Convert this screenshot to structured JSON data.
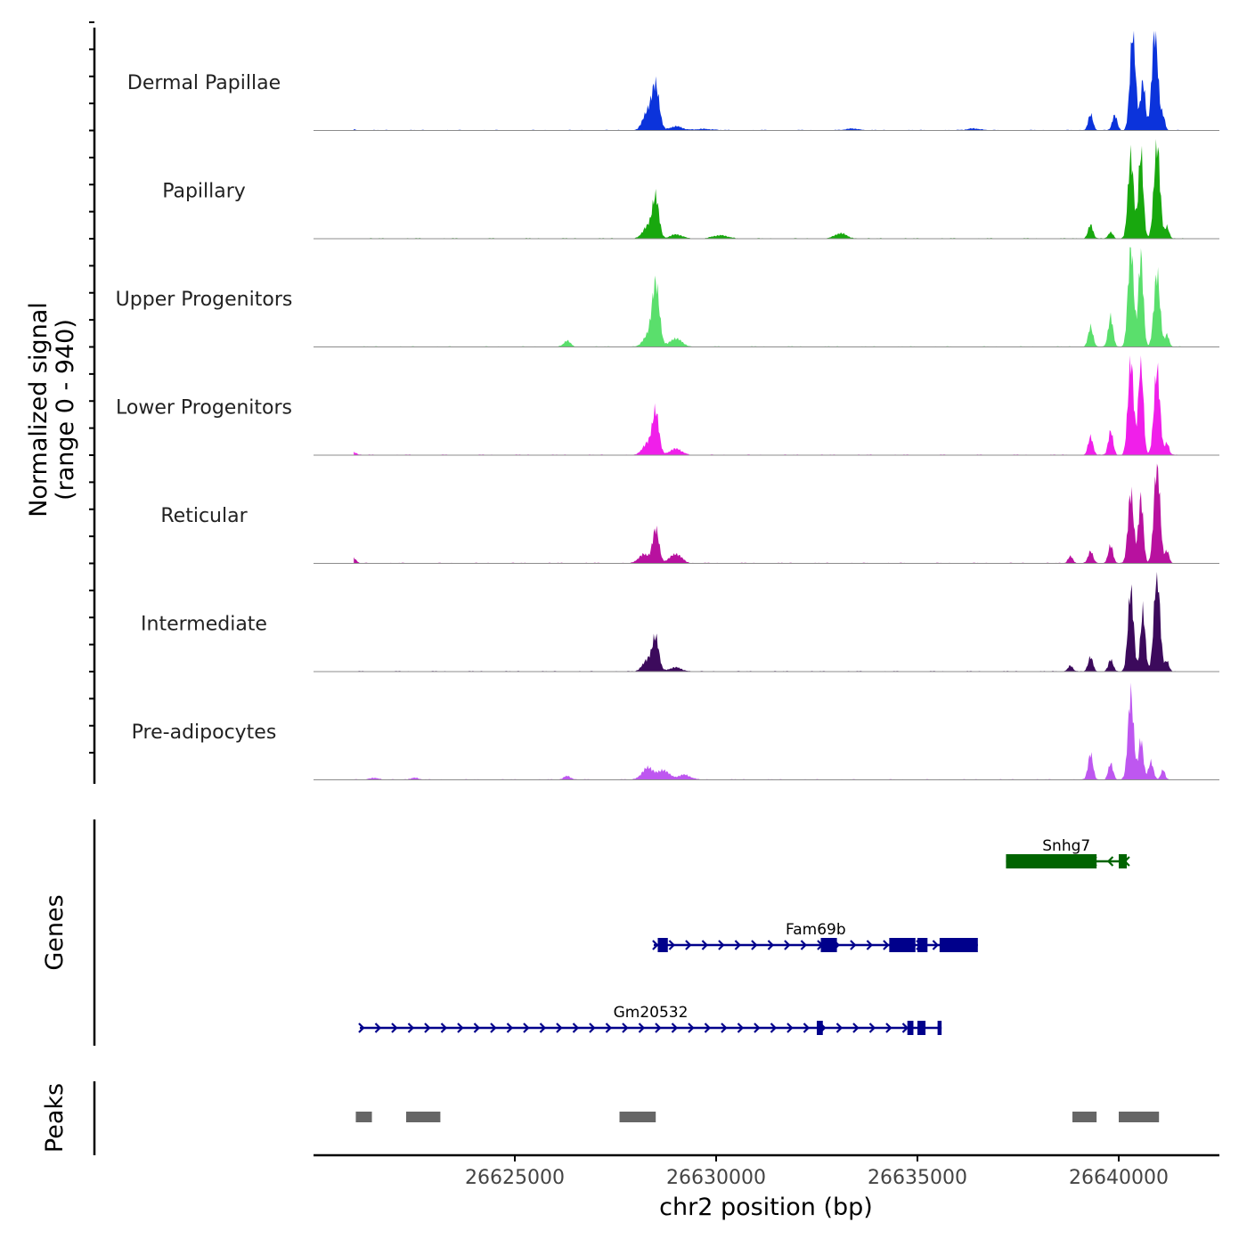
{
  "chart_data": {
    "type": "area",
    "title": "",
    "xlabel": "chr2 position (bp)",
    "ylabel_line1": "Normalized signal",
    "ylabel_line2": "(range 0 - 940)",
    "xlim": [
      26620000,
      26642500
    ],
    "ylim": [
      0,
      940
    ],
    "x_ticks": [
      26625000,
      26630000,
      26635000,
      26640000
    ],
    "x_tick_labels": [
      "26625000",
      "26630000",
      "26635000",
      "26640000"
    ],
    "tracks": [
      {
        "name": "Dermal Papillae",
        "color": "#0B33DB",
        "peaks": [
          [
            26621000,
            12,
            60
          ],
          [
            26628300,
            180,
            120
          ],
          [
            26628500,
            420,
            90
          ],
          [
            26629000,
            40,
            150
          ],
          [
            26629700,
            15,
            200
          ],
          [
            26633400,
            18,
            150
          ],
          [
            26636400,
            20,
            150
          ],
          [
            26639300,
            160,
            60
          ],
          [
            26639900,
            150,
            60
          ],
          [
            26640350,
            980,
            70
          ],
          [
            26640600,
            480,
            60
          ],
          [
            26640900,
            1000,
            75
          ],
          [
            26641100,
            140,
            50
          ]
        ]
      },
      {
        "name": "Papillary",
        "color": "#18A80E",
        "peaks": [
          [
            26628300,
            120,
            120
          ],
          [
            26628500,
            400,
            80
          ],
          [
            26629000,
            40,
            150
          ],
          [
            26630100,
            30,
            200
          ],
          [
            26633100,
            50,
            150
          ],
          [
            26639300,
            140,
            60
          ],
          [
            26639800,
            60,
            60
          ],
          [
            26640300,
            820,
            70
          ],
          [
            26640550,
            860,
            60
          ],
          [
            26640950,
            950,
            75
          ],
          [
            26641200,
            120,
            50
          ]
        ]
      },
      {
        "name": "Upper Progenitors",
        "color": "#5ADF6C",
        "peaks": [
          [
            26626300,
            60,
            80
          ],
          [
            26628300,
            100,
            120
          ],
          [
            26628500,
            620,
            90
          ],
          [
            26629000,
            80,
            150
          ],
          [
            26639300,
            200,
            60
          ],
          [
            26639800,
            300,
            60
          ],
          [
            26640300,
            1000,
            70
          ],
          [
            26640550,
            900,
            60
          ],
          [
            26640950,
            730,
            75
          ],
          [
            26641200,
            120,
            50
          ]
        ]
      },
      {
        "name": "Lower Progenitors",
        "color": "#F01FEA",
        "peaks": [
          [
            26621000,
            30,
            60
          ],
          [
            26628300,
            120,
            120
          ],
          [
            26628500,
            420,
            80
          ],
          [
            26629000,
            60,
            150
          ],
          [
            26639300,
            180,
            60
          ],
          [
            26639800,
            240,
            60
          ],
          [
            26640300,
            950,
            70
          ],
          [
            26640550,
            960,
            60
          ],
          [
            26640950,
            850,
            75
          ],
          [
            26641200,
            120,
            50
          ]
        ]
      },
      {
        "name": "Reticular",
        "color": "#B8119F",
        "peaks": [
          [
            26621000,
            50,
            60
          ],
          [
            26628200,
            90,
            120
          ],
          [
            26628500,
            340,
            80
          ],
          [
            26629000,
            90,
            150
          ],
          [
            26638800,
            70,
            60
          ],
          [
            26639300,
            120,
            60
          ],
          [
            26639800,
            180,
            60
          ],
          [
            26640300,
            700,
            70
          ],
          [
            26640550,
            650,
            60
          ],
          [
            26640950,
            1000,
            75
          ],
          [
            26641200,
            120,
            50
          ]
        ]
      },
      {
        "name": "Intermediate",
        "color": "#3C0A5C",
        "peaks": [
          [
            26628300,
            120,
            120
          ],
          [
            26628500,
            320,
            80
          ],
          [
            26629000,
            40,
            150
          ],
          [
            26638800,
            60,
            60
          ],
          [
            26639300,
            140,
            60
          ],
          [
            26639800,
            120,
            60
          ],
          [
            26640300,
            810,
            70
          ],
          [
            26640600,
            600,
            60
          ],
          [
            26640950,
            980,
            75
          ],
          [
            26641200,
            100,
            50
          ]
        ]
      },
      {
        "name": "Pre-adipocytes",
        "color": "#BE57F0",
        "peaks": [
          [
            26621500,
            20,
            100
          ],
          [
            26622500,
            20,
            100
          ],
          [
            26626300,
            40,
            80
          ],
          [
            26628300,
            120,
            140
          ],
          [
            26628700,
            90,
            140
          ],
          [
            26629200,
            50,
            150
          ],
          [
            26639300,
            260,
            60
          ],
          [
            26639800,
            160,
            60
          ],
          [
            26640300,
            850,
            70
          ],
          [
            26640550,
            400,
            60
          ],
          [
            26640800,
            180,
            60
          ],
          [
            26641100,
            100,
            50
          ]
        ]
      }
    ],
    "genes_label": "Genes",
    "genes": [
      {
        "name": "Snhg7",
        "strand": "-",
        "color": "#006400",
        "start": 26637200,
        "end": 26640200,
        "exons": [
          [
            26637200,
            26639450
          ],
          [
            26640000,
            26640200
          ]
        ]
      },
      {
        "name": "Fam69b",
        "strand": "+",
        "color": "#00008B",
        "start": 26628450,
        "end": 26636500,
        "exons": [
          [
            26628550,
            26628800
          ],
          [
            26632600,
            26633000
          ],
          [
            26634300,
            26634950
          ],
          [
            26635000,
            26635250
          ],
          [
            26635550,
            26636500
          ]
        ]
      },
      {
        "name": "Gm20532",
        "strand": "+",
        "color": "#00008B",
        "start": 26621150,
        "end": 26635600,
        "exons": [
          [
            26632500,
            26632650
          ],
          [
            26634750,
            26634900
          ],
          [
            26635000,
            26635200
          ],
          [
            26635500,
            26635600
          ]
        ]
      }
    ],
    "peaks_label": "Peaks",
    "peak_regions": [
      [
        26621050,
        26621450
      ],
      [
        26622300,
        26623150
      ],
      [
        26627600,
        26628500
      ],
      [
        26638850,
        26639450
      ],
      [
        26640000,
        26641000
      ]
    ]
  }
}
